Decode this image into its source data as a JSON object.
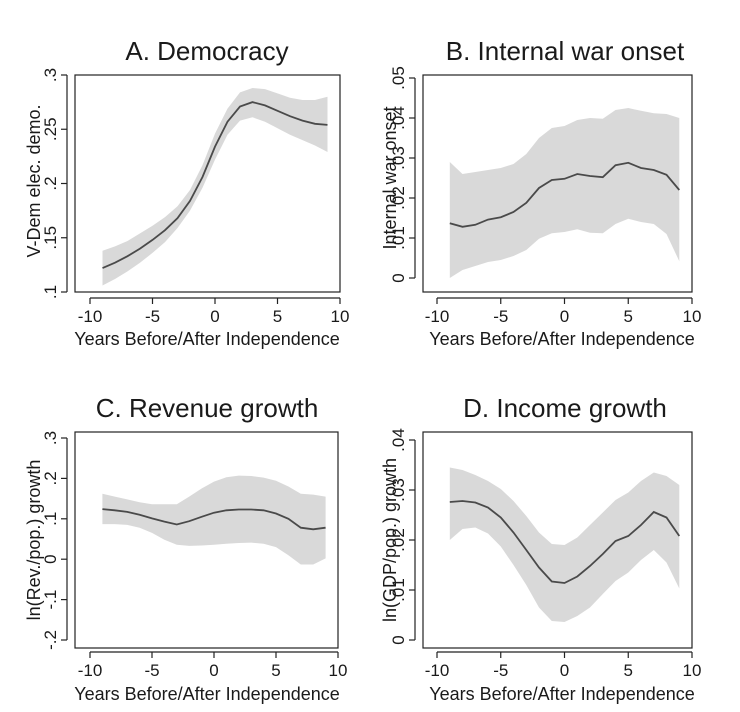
{
  "style": {
    "band_color": "#d9d9d9",
    "line_color": "#4a4a4a",
    "text_color": "#1a1a1a"
  },
  "chart_data": [
    {
      "id": "democracy",
      "type": "line",
      "title": "A. Democracy",
      "xlabel": "Years Before/After Independence",
      "ylabel": "V-Dem elec. demo.",
      "xlim": [
        -10,
        10
      ],
      "ylim": [
        0.1,
        0.3
      ],
      "xticks": [
        -10,
        -5,
        0,
        5,
        10
      ],
      "xtick_labels": [
        "-10",
        "-5",
        "0",
        "5",
        "10"
      ],
      "yticks": [
        0.1,
        0.15,
        0.2,
        0.25,
        0.3
      ],
      "ytick_labels": [
        ".1",
        ".15",
        ".2",
        ".25",
        ".3"
      ],
      "grid": false,
      "x": [
        -9,
        -8,
        -7,
        -6,
        -5,
        -4,
        -3,
        -2,
        -1,
        0,
        1,
        2,
        3,
        4,
        5,
        6,
        7,
        8,
        9
      ],
      "y": [
        0.122,
        0.127,
        0.133,
        0.14,
        0.148,
        0.157,
        0.168,
        0.184,
        0.206,
        0.234,
        0.257,
        0.271,
        0.275,
        0.272,
        0.267,
        0.262,
        0.258,
        0.255,
        0.254
      ],
      "lower": [
        0.106,
        0.112,
        0.119,
        0.127,
        0.136,
        0.146,
        0.159,
        0.175,
        0.196,
        0.222,
        0.245,
        0.258,
        0.261,
        0.257,
        0.251,
        0.245,
        0.24,
        0.235,
        0.229
      ],
      "upper": [
        0.138,
        0.142,
        0.147,
        0.154,
        0.161,
        0.169,
        0.179,
        0.194,
        0.217,
        0.246,
        0.269,
        0.284,
        0.288,
        0.287,
        0.283,
        0.279,
        0.277,
        0.277,
        0.28
      ]
    },
    {
      "id": "war",
      "type": "line",
      "title": "B. Internal war onset",
      "xlabel": "Years Before/After Independence",
      "ylabel": "Internal war onset",
      "xlim": [
        -10,
        10
      ],
      "ylim": [
        0,
        0.05
      ],
      "xticks": [
        -10,
        -5,
        0,
        5,
        10
      ],
      "xtick_labels": [
        "-10",
        "-5",
        "0",
        "5",
        "10"
      ],
      "yticks": [
        0,
        0.01,
        0.02,
        0.03,
        0.04,
        0.05
      ],
      "ytick_labels": [
        "0",
        ".01",
        ".02",
        ".03",
        ".04",
        ".05"
      ],
      "grid": false,
      "x": [
        -9,
        -8,
        -7,
        -6,
        -5,
        -4,
        -3,
        -2,
        -1,
        0,
        1,
        2,
        3,
        4,
        5,
        6,
        7,
        8,
        9
      ],
      "y": [
        0.0137,
        0.0128,
        0.0133,
        0.0146,
        0.0152,
        0.0165,
        0.0188,
        0.0225,
        0.0245,
        0.0248,
        0.026,
        0.0255,
        0.0252,
        0.0282,
        0.0288,
        0.0275,
        0.027,
        0.0258,
        0.022
      ],
      "lower": [
        0.0,
        0.002,
        0.003,
        0.004,
        0.0045,
        0.0055,
        0.007,
        0.0098,
        0.0112,
        0.0115,
        0.0122,
        0.0113,
        0.0112,
        0.0135,
        0.0148,
        0.014,
        0.0135,
        0.011,
        0.0042
      ],
      "upper": [
        0.029,
        0.026,
        0.0265,
        0.027,
        0.0275,
        0.0285,
        0.031,
        0.035,
        0.0375,
        0.038,
        0.0395,
        0.04,
        0.0398,
        0.042,
        0.0425,
        0.0418,
        0.0412,
        0.041,
        0.04
      ]
    },
    {
      "id": "revenue",
      "type": "line",
      "title": "C. Revenue growth",
      "xlabel": "Years Before/After Independence",
      "ylabel": "ln(Rev./pop.) growth",
      "xlim": [
        -10,
        10
      ],
      "ylim": [
        -0.2,
        0.3
      ],
      "xticks": [
        -10,
        -5,
        0,
        5,
        10
      ],
      "xtick_labels": [
        "-10",
        "-5",
        "0",
        "5",
        "10"
      ],
      "yticks": [
        -0.2,
        -0.1,
        0,
        0.1,
        0.2,
        0.3
      ],
      "ytick_labels": [
        "-.2",
        "-.1",
        "0",
        ".1",
        ".2",
        ".3"
      ],
      "grid": false,
      "x": [
        -9,
        -8,
        -7,
        -6,
        -5,
        -4,
        -3,
        -2,
        -1,
        0,
        1,
        2,
        3,
        4,
        5,
        6,
        7,
        8,
        9
      ],
      "y": [
        0.124,
        0.121,
        0.117,
        0.11,
        0.101,
        0.093,
        0.086,
        0.094,
        0.105,
        0.115,
        0.121,
        0.123,
        0.123,
        0.121,
        0.113,
        0.1,
        0.078,
        0.074,
        0.078
      ],
      "lower": [
        0.087,
        0.087,
        0.085,
        0.078,
        0.065,
        0.048,
        0.036,
        0.033,
        0.034,
        0.036,
        0.038,
        0.04,
        0.041,
        0.038,
        0.03,
        0.01,
        -0.013,
        -0.013,
        0.002
      ],
      "upper": [
        0.162,
        0.155,
        0.148,
        0.141,
        0.136,
        0.136,
        0.136,
        0.155,
        0.175,
        0.192,
        0.203,
        0.207,
        0.206,
        0.202,
        0.194,
        0.18,
        0.162,
        0.16,
        0.155
      ]
    },
    {
      "id": "income",
      "type": "line",
      "title": "D. Income growth",
      "xlabel": "Years Before/After Independence",
      "ylabel": "ln(GDP/pop.) growth",
      "xlim": [
        -10,
        10
      ],
      "ylim": [
        0,
        0.04
      ],
      "xticks": [
        -10,
        -5,
        0,
        5,
        10
      ],
      "xtick_labels": [
        "-10",
        "-5",
        "0",
        "5",
        "10"
      ],
      "yticks": [
        0,
        0.01,
        0.02,
        0.03,
        0.04
      ],
      "ytick_labels": [
        "0",
        ".01",
        ".02",
        ".03",
        ".04"
      ],
      "grid": false,
      "x": [
        -9,
        -8,
        -7,
        -6,
        -5,
        -4,
        -3,
        -2,
        -1,
        0,
        1,
        2,
        3,
        4,
        5,
        6,
        7,
        8,
        9
      ],
      "y": [
        0.0276,
        0.0278,
        0.0275,
        0.0265,
        0.0245,
        0.0215,
        0.018,
        0.0145,
        0.0117,
        0.0114,
        0.0127,
        0.0148,
        0.0172,
        0.0198,
        0.0208,
        0.023,
        0.0256,
        0.0245,
        0.0208
      ],
      "lower": [
        0.02,
        0.0222,
        0.0225,
        0.0213,
        0.0187,
        0.015,
        0.011,
        0.0065,
        0.0038,
        0.0036,
        0.0048,
        0.0065,
        0.0092,
        0.0118,
        0.0135,
        0.016,
        0.018,
        0.0155,
        0.0103
      ],
      "upper": [
        0.0345,
        0.034,
        0.033,
        0.0318,
        0.0302,
        0.0278,
        0.0248,
        0.0215,
        0.0192,
        0.019,
        0.0205,
        0.023,
        0.0255,
        0.028,
        0.0295,
        0.0318,
        0.0335,
        0.0328,
        0.031
      ]
    }
  ]
}
